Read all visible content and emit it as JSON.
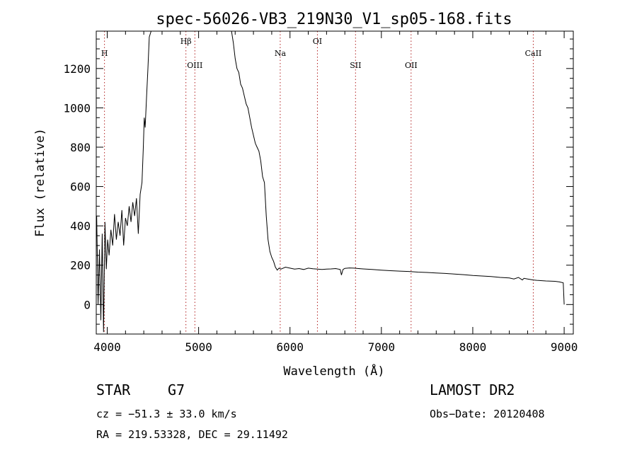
{
  "chart_data": {
    "type": "line",
    "title": "spec-56026-VB3_219N30_V1_sp05-168.fits",
    "xlabel": "Wavelength (Å)",
    "ylabel": "Flux (relative)",
    "xlim": [
      3880,
      9100
    ],
    "ylim": [
      -150,
      1390
    ],
    "xticks": [
      "4000",
      "5000",
      "6000",
      "7000",
      "8000",
      "9000"
    ],
    "yticks": [
      "0",
      "200",
      "400",
      "600",
      "800",
      "1000",
      "1200"
    ],
    "grid": false,
    "line_color": "#000000",
    "marker_color": "#b22222",
    "lines": [
      {
        "label": "H",
        "wave": 3970,
        "row": "top"
      },
      {
        "label": "Hβ",
        "wave": 4861,
        "row": "upper"
      },
      {
        "label": "OIII",
        "wave": 4959,
        "row": "lower"
      },
      {
        "label": "Na",
        "wave": 5893,
        "row": "middle"
      },
      {
        "label": "OI",
        "wave": 6300,
        "row": "upper"
      },
      {
        "label": "SII",
        "wave": 6717,
        "row": "lower"
      },
      {
        "label": "OII",
        "wave": 7325,
        "row": "lower"
      },
      {
        "label": "CaII",
        "wave": 8662,
        "row": "middle"
      }
    ],
    "series": [
      {
        "x": [
          3885,
          3900,
          3915,
          3930,
          3945,
          3960,
          3975,
          3990,
          4005,
          4020,
          4040,
          4060,
          4080,
          4100,
          4120,
          4140,
          4160,
          4180,
          4200,
          4220,
          4240,
          4260,
          4280,
          4300,
          4320,
          4340,
          4360,
          4380,
          4395,
          4405,
          4415,
          4430,
          4445,
          4460,
          4480,
          4500,
          4550,
          4600,
          4700,
          4800,
          4900,
          5000,
          5100,
          5200,
          5300,
          5340,
          5360,
          5380,
          5400,
          5420,
          5440,
          5460,
          5480,
          5500,
          5520,
          5540,
          5560,
          5580,
          5600,
          5620,
          5640,
          5660,
          5680,
          5700,
          5720,
          5740,
          5760,
          5780,
          5800,
          5820,
          5840,
          5860,
          5880,
          5900,
          5950,
          6000,
          6050,
          6100,
          6150,
          6200,
          6250,
          6300,
          6350,
          6400,
          6450,
          6500,
          6550,
          6563,
          6580,
          6600,
          6650,
          6700,
          6750,
          6800,
          6900,
          7000,
          7100,
          7200,
          7300,
          7400,
          7500,
          7600,
          7700,
          7800,
          7900,
          8000,
          8100,
          8200,
          8300,
          8400,
          8450,
          8500,
          8542,
          8560,
          8600,
          8662,
          8700,
          8800,
          8900,
          8950,
          8990,
          9000
        ],
        "y": [
          450,
          0,
          280,
          -80,
          360,
          -140,
          420,
          180,
          330,
          250,
          380,
          300,
          460,
          330,
          420,
          350,
          480,
          300,
          440,
          400,
          500,
          420,
          520,
          450,
          540,
          360,
          560,
          620,
          800,
          950,
          900,
          1050,
          1200,
          1360,
          1390,
          1390,
          1390,
          1390,
          1390,
          1390,
          1390,
          1390,
          1390,
          1390,
          1390,
          1390,
          1390,
          1330,
          1250,
          1200,
          1180,
          1120,
          1100,
          1060,
          1020,
          1000,
          950,
          900,
          860,
          820,
          800,
          780,
          730,
          650,
          620,
          450,
          330,
          270,
          240,
          220,
          190,
          175,
          185,
          180,
          190,
          185,
          180,
          183,
          178,
          185,
          182,
          180,
          178,
          180,
          181,
          183,
          178,
          150,
          178,
          184,
          186,
          185,
          183,
          181,
          178,
          175,
          172,
          170,
          168,
          165,
          163,
          160,
          158,
          155,
          152,
          148,
          145,
          142,
          138,
          135,
          130,
          138,
          125,
          133,
          130,
          125,
          123,
          120,
          118,
          115,
          110,
          0
        ]
      }
    ]
  },
  "footer": {
    "object_type": "STAR",
    "subclass": "G7",
    "survey": "LAMOST DR2",
    "redshift": "cz = −51.3 ± 33.0 km/s",
    "obs_date": "Obs−Date: 20120408",
    "coords": "RA = 219.53328, DEC =  29.11492"
  }
}
